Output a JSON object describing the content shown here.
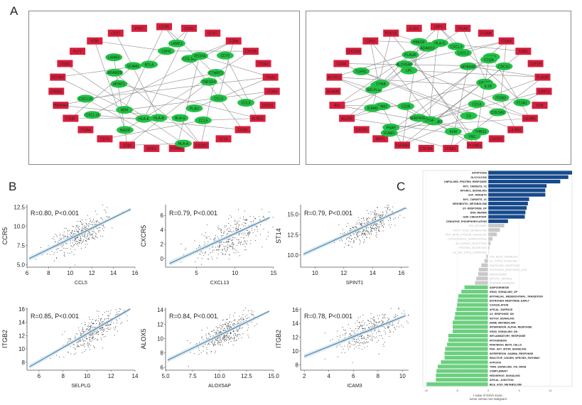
{
  "figure": {
    "panels": {
      "A": "A",
      "B": "B",
      "C": "C"
    },
    "colors": {
      "node_green": "#22c145",
      "node_red": "#d81e3c",
      "edge": "#8a8a8a",
      "scatter_point": "#333333",
      "regression_line": "#4a7fa8",
      "confidence_band": "#cfe3ef",
      "bar_up": "#174a8c",
      "bar_ns": "#c8c8c8",
      "bar_down": "#6ccf7f"
    }
  },
  "network_left": {
    "green_nodes": [
      "CCL8",
      "CCL3",
      "PLAU",
      "CCL5",
      "HLA-G",
      "HLA-A",
      "HLA-B",
      "HLA-E",
      "NGFR",
      "MDK",
      "CXCL13",
      "CXCL10",
      "SPINT1",
      "ADAM28",
      "LAMB3",
      "VCAM1",
      "BTLA",
      "CDH1",
      "LAMC1",
      "COL1A2",
      "VEGFA",
      "CD70",
      "CTHRC1",
      "TNFSF4"
    ],
    "red_nodes": [
      "CCR5",
      "CCR1",
      "CCR7",
      "CD8A",
      "CXCR5",
      "ITGA3",
      "ITGA2",
      "ITGB4",
      "CD151",
      "KLRD1",
      "CD3G",
      "ST14",
      "CXCR3",
      "PTPRS",
      "SDC1",
      "CD40",
      "CD74",
      "ITGA4",
      "ITGB7",
      "TNFRSF4",
      "ERBB2",
      "KITHR2",
      "ITGA1",
      "FLT1",
      "KDR",
      "CD27",
      "PTK7"
    ]
  },
  "network_right": {
    "green_nodes": [
      "F13A1",
      "ITGB3",
      "COL5A2",
      "CD14",
      "THBS1",
      "C3",
      "FN1",
      "A2M",
      "SERPINE1",
      "CTGF",
      "SERPING1",
      "ICAM1",
      "PSAP",
      "CD36",
      "ICAM2",
      "ICAM3",
      "SELPLG",
      "ITGB2",
      "CYBB",
      "TGFB1",
      "LPL",
      "ALOX5AP",
      "PLAUR",
      "HBEGF",
      "VIM",
      "ADAM10",
      "HLA-G",
      "CXCL3",
      "CXCL2",
      "SEMA4A",
      "CCN1",
      "C1QA",
      "CDCS1",
      "CALM1",
      "IL1B"
    ],
    "red_nodes": [
      "LRP1",
      "ITGA5",
      "ITGAM",
      "ITGAX",
      "CD81",
      "CSF1R",
      "PLAUR",
      "SORT1",
      "CD4",
      "LILRB1",
      "LILRB2",
      "CXCR2",
      "PLXNB1",
      "ITGB1",
      "CXCR4",
      "TGFBR2",
      "NRP1",
      "CXCR1",
      "ALOX5",
      "AXL",
      "ADAM8",
      "ACVRL1",
      "CD44",
      "CDCS1R",
      "CD93",
      "PDE1B",
      "IL1R1"
    ]
  },
  "chart_data": [
    {
      "type": "scatter",
      "title": "",
      "xlabel": "CCL5",
      "ylabel": "CCR5",
      "annotation": "R=0.80, P<0.001",
      "xlim": [
        6,
        16
      ],
      "ylim": [
        4.7,
        12.8
      ],
      "xticks": [
        "6",
        "8",
        "10",
        "12",
        "14",
        "16"
      ],
      "yticks": [
        "5.0",
        "7.5",
        "10.0",
        "12.5"
      ],
      "regression": {
        "x": [
          6.2,
          15.6
        ],
        "y": [
          5.8,
          12.2
        ]
      },
      "center": [
        10.8,
        8.9
      ],
      "spread": [
        1.4,
        1.1
      ],
      "r": 0.8
    },
    {
      "type": "scatter",
      "title": "",
      "xlabel": "CXCL13",
      "ylabel": "CXCR5",
      "annotation": "R=0.79, P<0.001",
      "xlim": [
        1,
        15
      ],
      "ylim": [
        -1.2,
        7.5
      ],
      "xticks": [
        "5",
        "10",
        "15"
      ],
      "yticks": [
        "0",
        "2",
        "4",
        "6"
      ],
      "regression": {
        "x": [
          1.5,
          14.5
        ],
        "y": [
          -0.7,
          5.7
        ]
      },
      "center": [
        9.5,
        3
      ],
      "spread": [
        2.4,
        1.6
      ],
      "r": 0.79
    },
    {
      "type": "scatter",
      "title": "",
      "xlabel": "SPINT1",
      "ylabel": "ST14",
      "annotation": "R=0.79, P<0.001",
      "xlim": [
        9,
        16.5
      ],
      "ylim": [
        8.5,
        16.2
      ],
      "xticks": [
        "10",
        "12",
        "14",
        "16"
      ],
      "yticks": [
        "10.0",
        "12.5",
        "15.0"
      ],
      "regression": {
        "x": [
          9.2,
          16.3
        ],
        "y": [
          10.1,
          15.8
        ]
      },
      "center": [
        13.6,
        13.6
      ],
      "spread": [
        1.0,
        1.0
      ],
      "r": 0.79
    },
    {
      "type": "scatter",
      "title": "",
      "xlabel": "SELPLG",
      "ylabel": "ITGB2",
      "annotation": "R=0.85, P<0.001",
      "xlim": [
        5,
        14
      ],
      "ylim": [
        6.8,
        16.2
      ],
      "xticks": [
        "6",
        "8",
        "10",
        "12",
        "14"
      ],
      "yticks": [
        "8",
        "10",
        "12",
        "14",
        "16"
      ],
      "regression": {
        "x": [
          5.2,
          13.6
        ],
        "y": [
          7.3,
          16.0
        ]
      },
      "center": [
        10.6,
        12.8
      ],
      "spread": [
        1.2,
        1.4
      ],
      "r": 0.85
    },
    {
      "type": "scatter",
      "title": "",
      "xlabel": "ALOX5AP",
      "ylabel": "ALOX5",
      "annotation": "R=0.84, P<0.001",
      "xlim": [
        5,
        15
      ],
      "ylim": [
        5.6,
        14.3
      ],
      "xticks": [
        "5.0",
        "7.5",
        "10.0",
        "12.5",
        "15.0"
      ],
      "yticks": [
        "6",
        "8",
        "10",
        "12",
        "14"
      ],
      "regression": {
        "x": [
          5.2,
          14.6
        ],
        "y": [
          7.0,
          13.8
        ]
      },
      "center": [
        10.6,
        10.9
      ],
      "spread": [
        1.3,
        1.2
      ],
      "r": 0.84
    },
    {
      "type": "scatter",
      "title": "",
      "xlabel": "ICAM3",
      "ylabel": "ITGB2",
      "annotation": "R=0.78, P<0.001",
      "xlim": [
        1.7,
        10.5
      ],
      "ylim": [
        7.2,
        16.3
      ],
      "xticks": [
        "2",
        "4",
        "6",
        "8",
        "10"
      ],
      "yticks": [
        "8",
        "10",
        "12",
        "14",
        "16"
      ],
      "regression": {
        "x": [
          2.0,
          10.2
        ],
        "y": [
          9.2,
          15.1
        ]
      },
      "center": [
        7.2,
        12.9
      ],
      "spread": [
        1.3,
        1.4
      ],
      "r": 0.78
    },
    {
      "type": "bar",
      "orientation": "horizontal",
      "title": "",
      "xlabel": "t value of GSVA score, tumor versus non-malignant",
      "xlim": [
        -10.5,
        13.5
      ],
      "xticks": [
        "-10",
        "-5",
        "0",
        "5",
        "10"
      ],
      "categories": [
        "APOPTOSIS",
        "GLYCOLYSIS",
        "UNFOLDED_PROTEIN_RESPONSE",
        "MYC_TARGETS_V2",
        "MTORC1_SIGNALING",
        "E2F_TARGETS",
        "MYC_TARGETS_V1",
        "XENOBIOTIC_METABOLISM",
        "UV_RESPONSE_UP",
        "DNA_REPAIR",
        "G2M_CHECKPOINT",
        "OXIDATIVE_PHOSPHORYLATION",
        "P53_PATHWAY",
        "FATTY_ACID_METABOLISM",
        "WNT_BETA_CATENIN_SIGNALING",
        "CHOLESTEROL_HOMEOSTASIS",
        "ALLOGRAFT_REJECTION",
        "PROTEIN_SECRETION",
        "IL6_JAK_STAT3_SIGNALING",
        "TGF_BETA_SIGNALING",
        "IL2_STAT5_SIGNALING",
        "ANDROGEN_RESPONSE",
        "ESTROGEN_RESPONSE_LATE",
        "PEROXISOME",
        "MITOTIC_SPINDLE",
        "SPERMATOGENESIS",
        "ADIPOGENESIS",
        "KRAS_SIGNALING_UP",
        "EPITHELIAL_MESENCHYMAL_TRANSITION",
        "ESTROGEN_RESPONSE_EARLY",
        "COAGULATION",
        "APICAL_SURFACE",
        "UV_RESPONSE_DN",
        "NOTCH_SIGNALING",
        "HEME_METABOLISM",
        "INTERFERON_ALPHA_RESPONSE",
        "KRAS_SIGNALING_DN",
        "INFLAMMATORY_RESPONSE",
        "MYOGENESIS",
        "PANCREAS_BETA_CELLS",
        "PI3K_AKT_MTOR_SIGNALING",
        "INTERFERON_GAMMA_RESPONSE",
        "REACTIVE_OXIGEN_SPECIES_PATHWAY",
        "HYPOXIA",
        "TNFA_SIGNALING_VIA_NFKB",
        "COMPLEMENT",
        "HEDGEHOG_SIGNALING",
        "APICAL_JUNCTION",
        "BILE_ACID_METABOLISM"
      ],
      "values": [
        13.5,
        12.9,
        11.6,
        9.4,
        9.2,
        9.2,
        6.6,
        6.4,
        6.2,
        6.0,
        5.9,
        3.2,
        2.6,
        1.9,
        1.4,
        0.7,
        0.4,
        0.2,
        0.1,
        -0.3,
        -0.6,
        -1.1,
        -1.5,
        -1.6,
        -1.9,
        -2.1,
        -3.8,
        -4.3,
        -4.8,
        -4.9,
        -5.0,
        -5.1,
        -5.3,
        -5.4,
        -5.7,
        -5.7,
        -5.7,
        -6.4,
        -6.4,
        -6.6,
        -6.9,
        -7.0,
        -7.0,
        -7.6,
        -8.1,
        -8.3,
        -8.4,
        -8.4,
        -9.9
      ],
      "groups": [
        "up",
        "up",
        "up",
        "up",
        "up",
        "up",
        "up",
        "up",
        "up",
        "up",
        "up",
        "up",
        "ns",
        "ns",
        "ns",
        "ns",
        "ns",
        "ns",
        "ns",
        "ns",
        "ns",
        "ns",
        "ns",
        "ns",
        "ns",
        "ns",
        "down",
        "down",
        "down",
        "down",
        "down",
        "down",
        "down",
        "down",
        "down",
        "down",
        "down",
        "down",
        "down",
        "down",
        "down",
        "down",
        "down",
        "down",
        "down",
        "down",
        "down",
        "down",
        "down"
      ]
    }
  ]
}
